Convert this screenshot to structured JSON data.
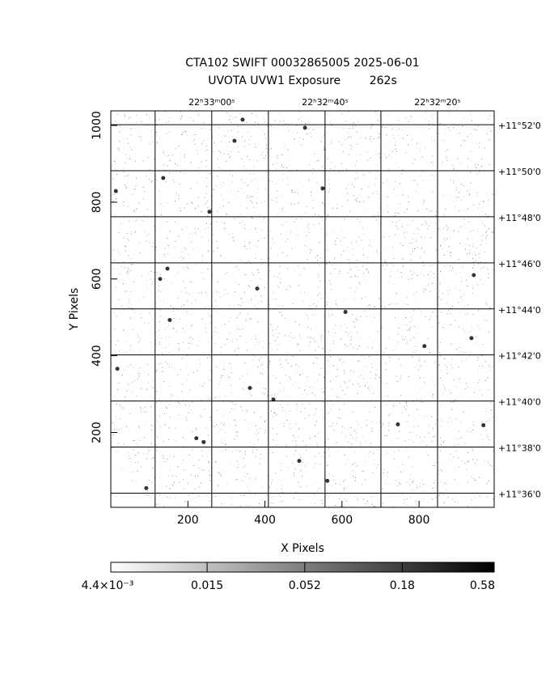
{
  "chart_data": {
    "type": "image",
    "title": "CTA102 SWIFT 00032865005 2025-06-01",
    "subtitle": "UVOTA UVW1 Exposure        262s",
    "x_label": "X Pixels",
    "y_label": "Y Pixels",
    "xlim": [
      0,
      995
    ],
    "ylim": [
      5,
      1038
    ],
    "xticks": [
      200,
      400,
      600,
      800
    ],
    "yticks": [
      200,
      400,
      600,
      800,
      1000
    ],
    "ra_grid": [
      115,
      262,
      409,
      556,
      701,
      848
    ],
    "ra_ticks": [
      {
        "value": 262,
        "label": "22ʰ33ᵐ00ˢ"
      },
      {
        "value": 556,
        "label": "22ʰ32ᵐ40ˢ"
      },
      {
        "value": 848,
        "label": "22ʰ32ᵐ20ˢ"
      }
    ],
    "dec_ticks": [
      {
        "value": 1002,
        "label": "+11°52'0"
      },
      {
        "value": 882,
        "label": "+11°50'0"
      },
      {
        "value": 762,
        "label": "+11°48'0"
      },
      {
        "value": 642,
        "label": "+11°46'0"
      },
      {
        "value": 522,
        "label": "+11°44'0"
      },
      {
        "value": 402,
        "label": "+11°42'0"
      },
      {
        "value": 282,
        "label": "+11°40'0"
      },
      {
        "value": 162,
        "label": "+11°38'0"
      },
      {
        "value": 42,
        "label": "+11°36'0"
      }
    ],
    "sources": {
      "x": [
        342,
        504,
        321,
        550,
        13,
        136,
        256,
        147,
        128,
        380,
        609,
        153,
        942,
        936,
        814,
        17,
        361,
        422,
        745,
        967,
        222,
        241,
        489,
        562,
        92
      ],
      "y": [
        1015,
        994,
        960,
        836,
        829,
        863,
        775,
        627,
        600,
        575,
        514,
        493,
        610,
        446,
        425,
        366,
        316,
        286,
        221,
        219,
        185,
        175,
        126,
        74,
        55
      ]
    },
    "colorbar_lim": [
      0.0044,
      0.58
    ],
    "colorbar_log": true,
    "colorbar_ticks": [
      {
        "value": 0.0044,
        "label": "4.4×10⁻³"
      },
      0.015,
      0.052,
      0.18,
      0.58
    ]
  }
}
